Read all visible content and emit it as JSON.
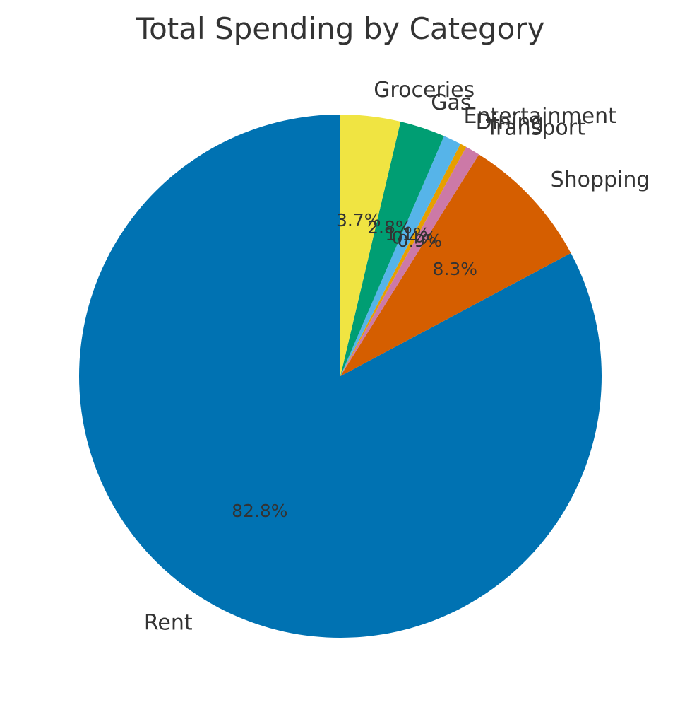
{
  "chart_data": {
    "type": "pie",
    "title": "Total Spending by Category",
    "start_angle_deg": 90,
    "direction": "counterclockwise",
    "slices": [
      {
        "label": "Rent",
        "percent": 82.8,
        "pct_label": "82.8%",
        "color": "#0072B2"
      },
      {
        "label": "Shopping",
        "percent": 8.3,
        "pct_label": "8.3%",
        "color": "#D55E00"
      },
      {
        "label": "Transport",
        "percent": 0.9,
        "pct_label": "0.9%",
        "color": "#CC79A7"
      },
      {
        "label": "Dining",
        "percent": 0.4,
        "pct_label": "0.4%",
        "color": "#E69F00"
      },
      {
        "label": "Entertainment",
        "percent": 1.1,
        "pct_label": "1.1%",
        "color": "#56B4E9"
      },
      {
        "label": "Gas",
        "percent": 2.8,
        "pct_label": "2.8%",
        "color": "#009E73"
      },
      {
        "label": "Groceries",
        "percent": 3.7,
        "pct_label": "3.7%",
        "color": "#F0E442"
      }
    ]
  }
}
